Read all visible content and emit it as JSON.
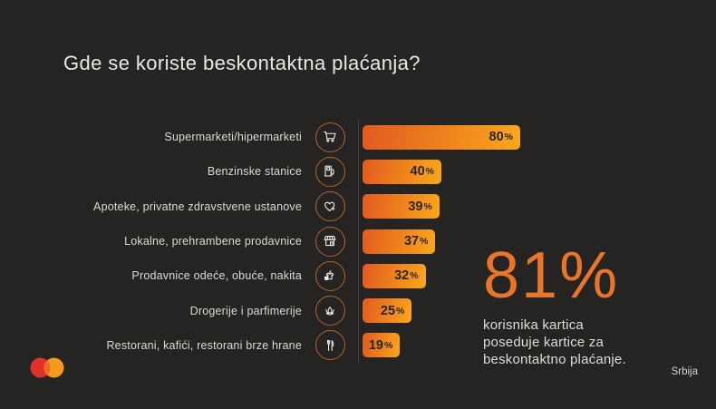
{
  "slide": {
    "title": "Gde se koriste beskontaktna plaćanja?",
    "country_label": "Srbija"
  },
  "chart_data": {
    "type": "bar",
    "orientation": "horizontal",
    "title": "Gde se koriste beskontaktna plaćanja?",
    "categories": [
      "Supermarketi/hipermarketi",
      "Benzinske stanice",
      "Apoteke, privatne zdravstvene ustanove",
      "Lokalne, prehrambene prodavnice",
      "Prodavnice odeće, obuće, nakita",
      "Drogerije i parfimerije",
      "Restorani, kafići, restorani brze hrane"
    ],
    "values": [
      80,
      40,
      39,
      37,
      32,
      25,
      19
    ],
    "value_suffix": "%",
    "icons": [
      "shopping-cart-icon",
      "fuel-pump-icon",
      "heart-plus-icon",
      "storefront-icon",
      "clothing-icon",
      "perfume-icon",
      "cutlery-icon"
    ],
    "xlim": [
      0,
      100
    ],
    "legend": "none",
    "grid": "off",
    "bar_gradient": [
      "#e25a20",
      "#f9a81c"
    ],
    "icon_ring_color": "#b2642e",
    "background_color": "#262422"
  },
  "stat": {
    "value": "81%",
    "description_lines": [
      "korisnika kartica",
      "poseduje kartice za",
      "beskontaktno plaćanje."
    ],
    "color": "#e8762a"
  },
  "brand": {
    "name": "mastercard-logo",
    "red": "#e2312b",
    "orange": "#f49b1e",
    "overlap": "#ef6c24"
  }
}
